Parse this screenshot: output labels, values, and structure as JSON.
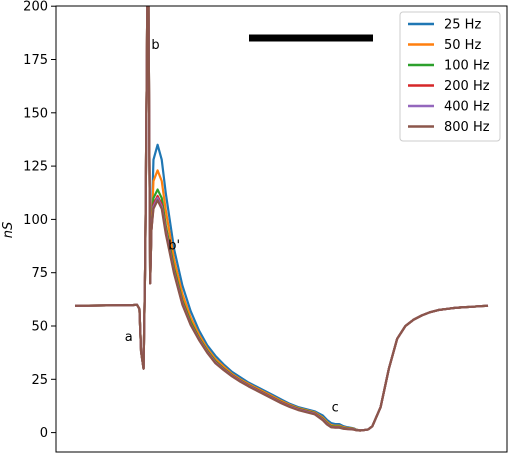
{
  "chart_data": {
    "type": "line",
    "title": "",
    "xlabel": "",
    "ylabel": "nS",
    "ylim": [
      0,
      200
    ],
    "xlim": [
      0,
      100
    ],
    "y_ticks": [
      0,
      25,
      50,
      75,
      100,
      125,
      150,
      175,
      200
    ],
    "x_ticks": [],
    "grid": false,
    "legend": {
      "placement": "top-right"
    },
    "scale_bar": {
      "present": true,
      "color": "#000000"
    },
    "annotations": [
      {
        "text": "a",
        "x": 13.0,
        "y": 45
      },
      {
        "text": "b",
        "x": 19.5,
        "y": 182
      },
      {
        "text": "b'",
        "x": 24.0,
        "y": 88
      },
      {
        "text": "c",
        "x": 63.0,
        "y": 12
      }
    ],
    "series": [
      {
        "name": "25 Hz",
        "color": "#1f77b4",
        "x": [
          0,
          14,
          15,
          15.6,
          16,
          16.6,
          17,
          17.5,
          17.8,
          18.2,
          18.5,
          19,
          20,
          21,
          22,
          24,
          26,
          28,
          30,
          32,
          34,
          36,
          38,
          40,
          42,
          44,
          46,
          48,
          50,
          52,
          54,
          56,
          58,
          60,
          61,
          62,
          63,
          64,
          65,
          66,
          67,
          67.5,
          68,
          69,
          70,
          71,
          72,
          74,
          76,
          78,
          80,
          82,
          84,
          86,
          88,
          90,
          92,
          94,
          96,
          98,
          100
        ],
        "y": [
          59.5,
          59.8,
          60,
          58,
          38,
          30,
          80,
          200,
          200,
          70,
          95,
          128,
          135,
          128,
          112,
          86,
          69,
          57,
          48,
          41,
          36,
          32,
          28.5,
          26,
          23.5,
          21.5,
          19.5,
          17.5,
          15.5,
          13.5,
          12,
          11,
          10,
          8,
          6,
          4.5,
          4,
          4,
          3,
          2.5,
          2.2,
          2,
          1.5,
          1,
          1.2,
          1.5,
          3,
          12,
          30,
          44,
          50,
          53,
          55,
          56.5,
          57.5,
          58,
          58.5,
          58.8,
          59,
          59.3,
          59.5
        ]
      },
      {
        "name": "50 Hz",
        "color": "#ff7f0e",
        "x": [
          0,
          14,
          15,
          15.6,
          16,
          16.6,
          17,
          17.5,
          17.8,
          18.2,
          18.5,
          19,
          20,
          21,
          22,
          24,
          26,
          28,
          30,
          32,
          34,
          36,
          38,
          40,
          42,
          44,
          46,
          48,
          50,
          52,
          54,
          56,
          58,
          60,
          61,
          62,
          63,
          64,
          65,
          66,
          67,
          67.5,
          68,
          69,
          70,
          71,
          72,
          74,
          76,
          78,
          80,
          82,
          84,
          86,
          88,
          90,
          92,
          94,
          96,
          98,
          100
        ],
        "y": [
          59.5,
          59.8,
          60,
          58,
          38,
          30,
          80,
          200,
          200,
          70,
          95,
          118,
          123,
          118,
          104,
          81,
          65,
          54,
          46,
          39.5,
          34.5,
          31,
          27.5,
          25,
          22.8,
          20.8,
          18.8,
          16.8,
          14.8,
          13,
          11.5,
          10.5,
          9.5,
          7,
          5,
          3.5,
          3.2,
          3.2,
          2.5,
          2.2,
          2,
          1.8,
          1.4,
          1,
          1.2,
          1.5,
          3,
          12,
          30,
          44,
          50,
          53,
          55,
          56.5,
          57.5,
          58,
          58.5,
          58.8,
          59,
          59.3,
          59.5
        ]
      },
      {
        "name": "100 Hz",
        "color": "#2ca02c",
        "x": [
          0,
          14,
          15,
          15.6,
          16,
          16.6,
          17,
          17.5,
          17.8,
          18.2,
          18.5,
          19,
          20,
          21,
          22,
          24,
          26,
          28,
          30,
          32,
          34,
          36,
          38,
          40,
          42,
          44,
          46,
          48,
          50,
          52,
          54,
          56,
          58,
          60,
          61,
          62,
          63,
          64,
          65,
          66,
          67,
          67.5,
          68,
          69,
          70,
          71,
          72,
          74,
          76,
          78,
          80,
          82,
          84,
          86,
          88,
          90,
          92,
          94,
          96,
          98,
          100
        ],
        "y": [
          59.5,
          59.8,
          60,
          58,
          38,
          30,
          80,
          200,
          200,
          70,
          95,
          110,
          114,
          110,
          97,
          77,
          62,
          52,
          44.5,
          38.5,
          33.5,
          30,
          27,
          24.5,
          22.3,
          20.3,
          18.3,
          16.3,
          14.3,
          12.6,
          11.2,
          10.2,
          9.2,
          6.5,
          4.5,
          3,
          2.8,
          2.8,
          2.2,
          2,
          1.8,
          1.6,
          1.3,
          1,
          1.2,
          1.5,
          3,
          12,
          30,
          44,
          50,
          53,
          55,
          56.5,
          57.5,
          58,
          58.5,
          58.8,
          59,
          59.3,
          59.5
        ]
      },
      {
        "name": "200 Hz",
        "color": "#d62728",
        "x": [
          0,
          14,
          15,
          15.6,
          16,
          16.6,
          17,
          17.5,
          17.8,
          18.2,
          18.5,
          19,
          20,
          21,
          22,
          24,
          26,
          28,
          30,
          32,
          34,
          36,
          38,
          40,
          42,
          44,
          46,
          48,
          50,
          52,
          54,
          56,
          58,
          60,
          61,
          62,
          63,
          64,
          65,
          66,
          67,
          67.5,
          68,
          69,
          70,
          71,
          72,
          74,
          76,
          78,
          80,
          82,
          84,
          86,
          88,
          90,
          92,
          94,
          96,
          98,
          100
        ],
        "y": [
          59.5,
          59.8,
          60,
          58,
          38,
          30,
          80,
          200,
          200,
          70,
          95,
          107,
          111,
          107,
          95,
          75.5,
          61,
          51,
          44,
          38,
          33,
          29.7,
          26.8,
          24.3,
          22.1,
          20.1,
          18.1,
          16.1,
          14.1,
          12.4,
          11,
          10,
          9,
          6.2,
          4.2,
          2.7,
          2.5,
          2.5,
          2,
          1.8,
          1.7,
          1.5,
          1.2,
          1,
          1.2,
          1.5,
          3,
          12,
          30,
          44,
          50,
          53,
          55,
          56.5,
          57.5,
          58,
          58.5,
          58.8,
          59,
          59.3,
          59.5
        ]
      },
      {
        "name": "400 Hz",
        "color": "#9467bd",
        "x": [
          0,
          14,
          15,
          15.6,
          16,
          16.6,
          17,
          17.5,
          17.8,
          18.2,
          18.5,
          19,
          20,
          21,
          22,
          24,
          26,
          28,
          30,
          32,
          34,
          36,
          38,
          40,
          42,
          44,
          46,
          48,
          50,
          52,
          54,
          56,
          58,
          60,
          61,
          62,
          63,
          64,
          65,
          66,
          67,
          67.5,
          68,
          69,
          70,
          71,
          72,
          74,
          76,
          78,
          80,
          82,
          84,
          86,
          88,
          90,
          92,
          94,
          96,
          98,
          100
        ],
        "y": [
          59.5,
          59.8,
          60,
          58,
          38,
          30,
          80,
          200,
          200,
          70,
          95,
          106,
          110,
          106,
          94,
          75,
          60.5,
          50.7,
          43.8,
          37.8,
          32.8,
          29.5,
          26.6,
          24.1,
          21.9,
          19.9,
          17.9,
          15.9,
          13.9,
          12.2,
          10.8,
          9.8,
          8.8,
          6,
          4,
          2.6,
          2.4,
          2.4,
          1.9,
          1.7,
          1.6,
          1.5,
          1.2,
          1,
          1.2,
          1.5,
          3,
          12,
          30,
          44,
          50,
          53,
          55,
          56.5,
          57.5,
          58,
          58.5,
          58.8,
          59,
          59.3,
          59.5
        ]
      },
      {
        "name": "800 Hz",
        "color": "#8c564b",
        "x": [
          0,
          14,
          15,
          15.6,
          16,
          16.6,
          17,
          17.5,
          17.8,
          18.2,
          18.5,
          19,
          20,
          21,
          22,
          24,
          26,
          28,
          30,
          32,
          34,
          36,
          38,
          40,
          42,
          44,
          46,
          48,
          50,
          52,
          54,
          56,
          58,
          60,
          61,
          62,
          63,
          64,
          65,
          66,
          67,
          67.5,
          68,
          69,
          70,
          71,
          72,
          74,
          76,
          78,
          80,
          82,
          84,
          86,
          88,
          90,
          92,
          94,
          96,
          98,
          100
        ],
        "y": [
          59.5,
          59.8,
          60,
          58,
          38,
          30,
          80,
          200,
          200,
          70,
          95,
          105,
          109,
          105,
          93,
          74.5,
          60,
          50.5,
          43.5,
          37.5,
          32.5,
          29.3,
          26.4,
          23.9,
          21.7,
          19.7,
          17.7,
          15.7,
          13.7,
          12,
          10.6,
          9.6,
          8.6,
          5.8,
          3.8,
          2.5,
          2.3,
          2.3,
          1.8,
          1.6,
          1.5,
          1.4,
          1.1,
          1,
          1.2,
          1.5,
          3,
          12,
          30,
          44,
          50,
          53,
          55,
          56.5,
          57.5,
          58,
          58.5,
          58.8,
          59,
          59.3,
          59.5
        ]
      }
    ]
  }
}
